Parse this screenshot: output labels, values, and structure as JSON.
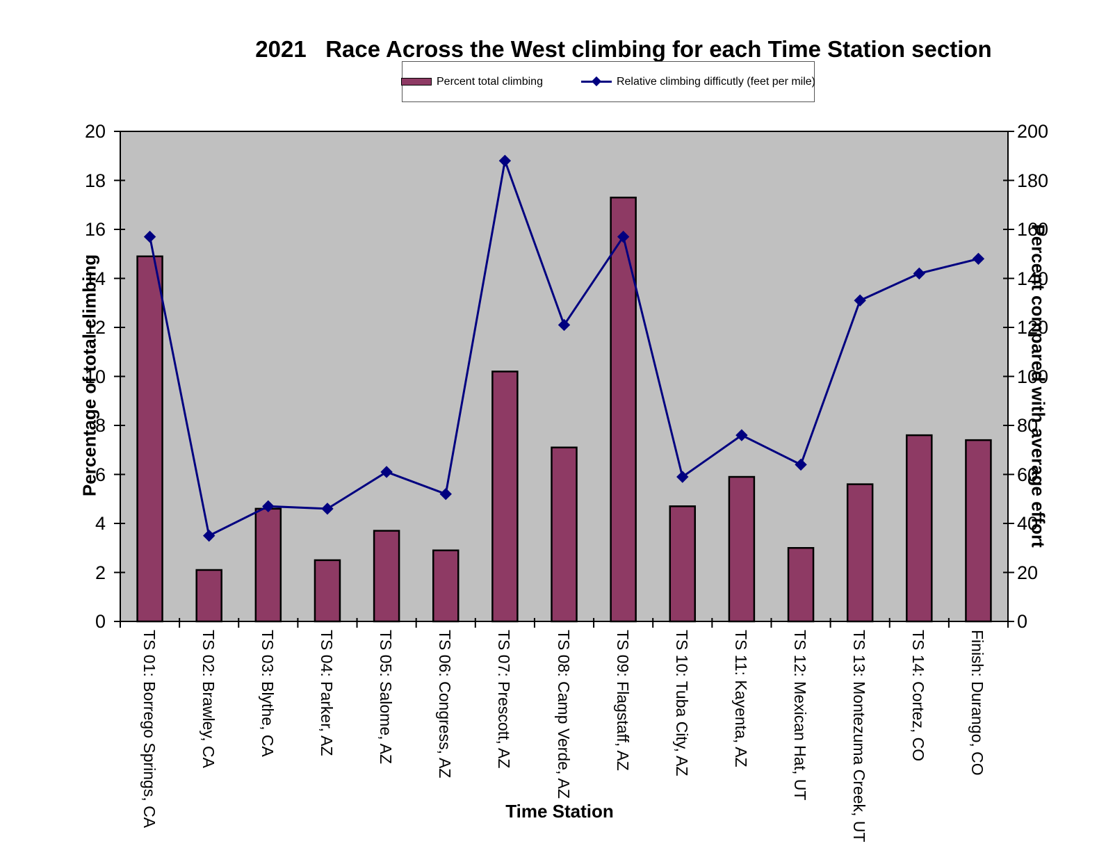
{
  "chart_data": {
    "type": "bar+line",
    "title": "2021   Race Across the West climbing for each Time Station section",
    "xlabel": "Time Station",
    "ylabel_left": "Percentage of total climbing",
    "ylabel_right": "Percent compared with average effort",
    "ylim_left": [
      0,
      20
    ],
    "ytick_step_left": 2,
    "ylim_right": [
      0,
      200
    ],
    "ytick_step_right": 20,
    "grid": false,
    "legend_position": "top",
    "plot_bg": "#c0c0c0",
    "categories": [
      "TS 01: Borrego Springs, CA",
      "TS 02: Brawley, CA",
      "TS 03: Blythe, CA",
      "TS 04: Parker, AZ",
      "TS 05: Salome, AZ",
      "TS 06: Congress, AZ",
      "TS 07: Prescott, AZ",
      "TS 08: Camp Verde, AZ",
      "TS 09: Flagstaff, AZ",
      "TS 10: Tuba City, AZ",
      "TS 11: Kayenta, AZ",
      "TS 12: Mexican Hat, UT",
      "TS 13: Montezuma Creek, UT",
      "TS 14: Cortez, CO",
      "Finish: Durango, CO"
    ],
    "series": [
      {
        "name": "Percent total climbing",
        "type": "bar",
        "axis": "left",
        "color": "#8e3a64",
        "border_color": "#000000",
        "values": [
          14.9,
          2.1,
          4.6,
          2.5,
          3.7,
          2.9,
          10.2,
          7.1,
          17.3,
          4.7,
          5.9,
          3.0,
          5.6,
          7.6,
          7.4
        ]
      },
      {
        "name": "Relative climbing difficutly (feet per mile)",
        "type": "line",
        "axis": "right",
        "color": "#000080",
        "marker": "diamond",
        "values": [
          157,
          35,
          47,
          46,
          61,
          52,
          188,
          121,
          157,
          59,
          76,
          64,
          131,
          142,
          148
        ]
      }
    ]
  },
  "legend": {
    "items": [
      {
        "label": "Percent total climbing"
      },
      {
        "label": "Relative climbing difficutly (feet per mile)"
      }
    ]
  }
}
